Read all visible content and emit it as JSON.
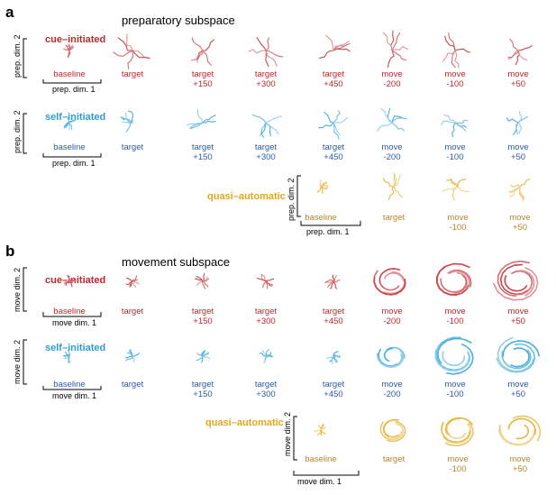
{
  "panels": [
    {
      "letter": "a",
      "title": "preparatory subspace",
      "axis_x": "prep. dim. 1",
      "axis_y": "prep. dim. 2",
      "rows": [
        {
          "condition": "cue–initiated",
          "color": "#c1272d",
          "labels": [
            "baseline",
            "target",
            "target\n+150",
            "target\n+300",
            "target\n+450",
            "move\n-200",
            "move\n-100",
            "move\n+50"
          ]
        },
        {
          "condition": "self–initiated",
          "color": "#2b9fd6",
          "label_color": "#2e5aa8",
          "labels": [
            "baseline",
            "target",
            "target\n+150",
            "target\n+300",
            "target\n+450",
            "move\n-200",
            "move\n-100",
            "move\n+50"
          ]
        },
        {
          "condition": "quasi–automatic",
          "color": "#e0a91b",
          "label_color": "#b5862a",
          "labels": [
            "baseline",
            "target",
            "move\n-100",
            "move\n+50"
          ]
        }
      ]
    },
    {
      "letter": "b",
      "title": "movement subspace",
      "axis_x": "move dim. 1",
      "axis_y": "move dim. 2",
      "rows": [
        {
          "condition": "cue–initiated",
          "color": "#c1272d",
          "labels": [
            "baseline",
            "target",
            "target\n+150",
            "target\n+300",
            "target\n+450",
            "move\n-200",
            "move\n-100",
            "move\n+50"
          ]
        },
        {
          "condition": "self–initiated",
          "color": "#2b9fd6",
          "label_color": "#2e5aa8",
          "labels": [
            "baseline",
            "target",
            "target\n+150",
            "target\n+300",
            "target\n+450",
            "move\n-200",
            "move\n-100",
            "move\n+50"
          ]
        },
        {
          "condition": "quasi–automatic",
          "color": "#e0a91b",
          "label_color": "#b5862a",
          "labels": [
            "baseline",
            "target",
            "move\n-100",
            "move\n+50"
          ]
        }
      ]
    }
  ]
}
